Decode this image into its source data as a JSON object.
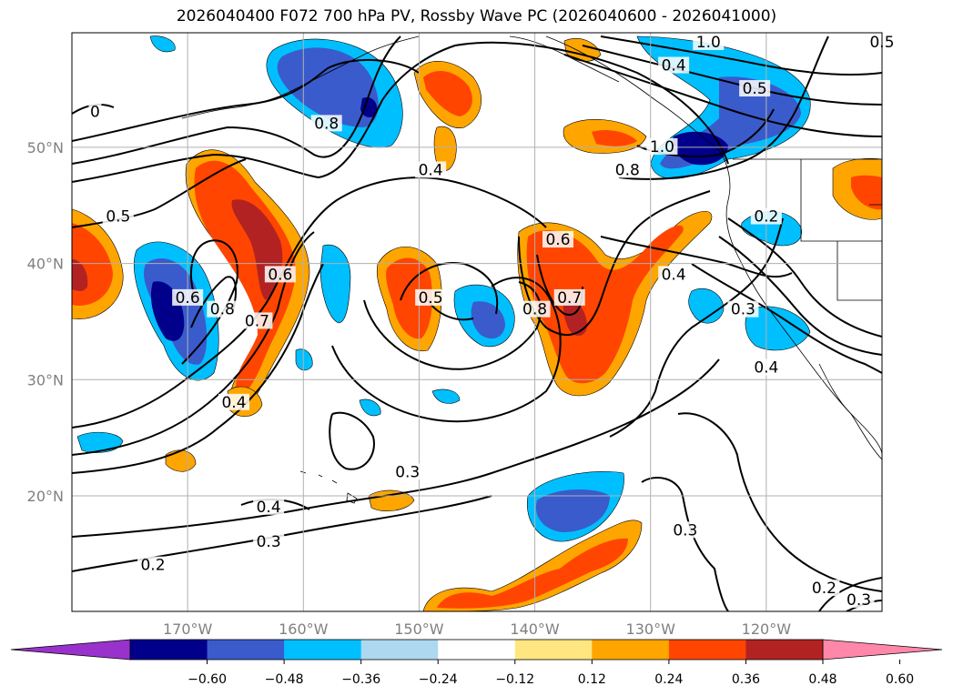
{
  "title": "2026040400 F072 700 hPa PV, Rossby Wave PC (2026040600 - 2026041000)",
  "chart_data": {
    "type": "heatmap",
    "title": "2026040400 F072 700 hPa PV, Rossby Wave PC (2026040600 - 2026041000)",
    "x_axis": {
      "label": "",
      "lon_range": [
        -180,
        -110
      ],
      "ticks": [
        -170,
        -160,
        -150,
        -140,
        -130,
        -120
      ],
      "tick_labels": [
        "170°W",
        "160°W",
        "150°W",
        "140°W",
        "130°W",
        "120°W"
      ]
    },
    "y_axis": {
      "label": "",
      "lat_range": [
        10,
        60
      ],
      "ticks": [
        20,
        30,
        40,
        50
      ],
      "tick_labels": [
        "20°N",
        "30°N",
        "40°N",
        "50°N"
      ]
    },
    "grid": true,
    "colorbar": {
      "orientation": "horizontal",
      "extend": "both",
      "levels": [
        -0.6,
        -0.48,
        -0.36,
        -0.24,
        -0.12,
        0.12,
        0.24,
        0.36,
        0.48,
        0.6
      ],
      "tick_labels": [
        "−0.60",
        "−0.48",
        "−0.36",
        "−0.24",
        "−0.12",
        "0.12",
        "0.24",
        "0.36",
        "0.48",
        "0.60"
      ],
      "colors": [
        "#9932cc",
        "#00008b",
        "#3a5bcc",
        "#00bfff",
        "#add8f0",
        "#ffffff",
        "#ffe680",
        "#ffa500",
        "#ff4500",
        "#b22222",
        "#ff88aa"
      ]
    },
    "contour_labels": [
      {
        "text": "0.8",
        "lon": -158,
        "lat": 52
      },
      {
        "text": "0.4",
        "lon": -149,
        "lat": 48
      },
      {
        "text": "0.8",
        "lon": -132,
        "lat": 48
      },
      {
        "text": "1.0",
        "lon": -129,
        "lat": 50
      },
      {
        "text": "1.0",
        "lon": -125,
        "lat": 59
      },
      {
        "text": "0.5",
        "lon": -121,
        "lat": 55
      },
      {
        "text": "0.4",
        "lon": -128,
        "lat": 57
      },
      {
        "text": "0.5",
        "lon": -110,
        "lat": 59
      },
      {
        "text": "0.5",
        "lon": -176,
        "lat": 44
      },
      {
        "text": "0.6",
        "lon": -170,
        "lat": 37
      },
      {
        "text": "0.8",
        "lon": -167,
        "lat": 36
      },
      {
        "text": "0.7",
        "lon": -164,
        "lat": 35
      },
      {
        "text": "0.6",
        "lon": -162,
        "lat": 39
      },
      {
        "text": "0.5",
        "lon": -149,
        "lat": 37
      },
      {
        "text": "0.6",
        "lon": -138,
        "lat": 42
      },
      {
        "text": "0.8",
        "lon": -140,
        "lat": 36
      },
      {
        "text": "0.7",
        "lon": -137,
        "lat": 37
      },
      {
        "text": "0.4",
        "lon": -128,
        "lat": 39
      },
      {
        "text": "0.2",
        "lon": -120,
        "lat": 44
      },
      {
        "text": "0.3",
        "lon": -122,
        "lat": 36
      },
      {
        "text": "0.4",
        "lon": -120,
        "lat": 31
      },
      {
        "text": "0.4",
        "lon": -166,
        "lat": 28
      },
      {
        "text": "0.3",
        "lon": -151,
        "lat": 22
      },
      {
        "text": "0.4",
        "lon": -163,
        "lat": 19
      },
      {
        "text": "0.3",
        "lon": -163,
        "lat": 16
      },
      {
        "text": "0.2",
        "lon": -173,
        "lat": 14
      },
      {
        "text": "0.3",
        "lon": -127,
        "lat": 17
      },
      {
        "text": "0.2",
        "lon": -115,
        "lat": 12
      },
      {
        "text": "0.3",
        "lon": -112,
        "lat": 11
      },
      {
        "text": "0",
        "lon": -178,
        "lat": 53
      }
    ]
  }
}
